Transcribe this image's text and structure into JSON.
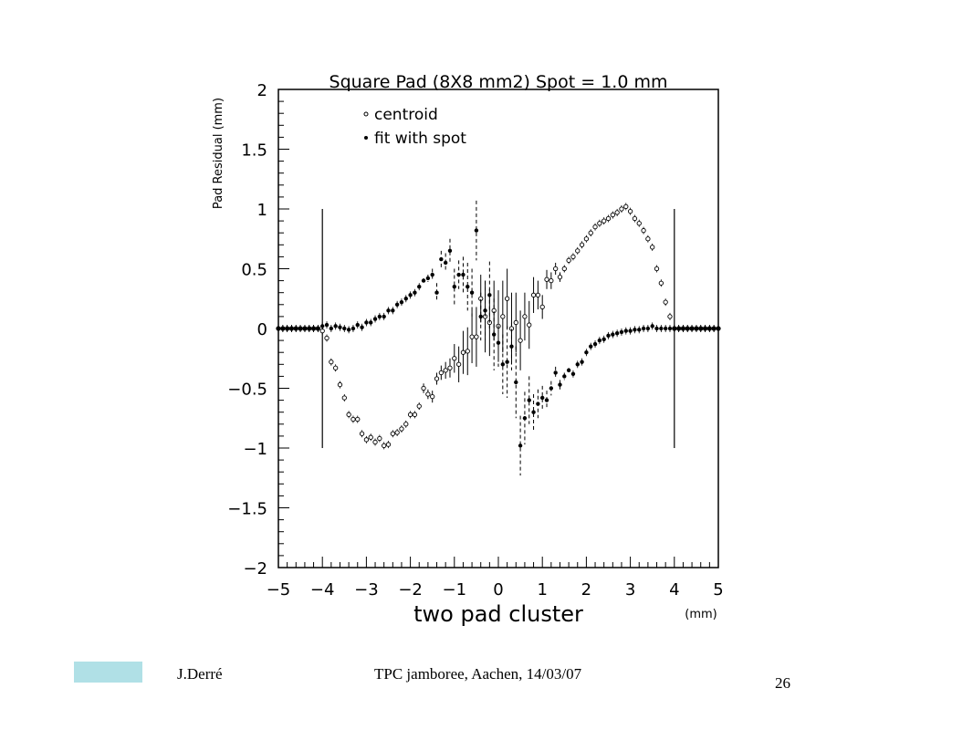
{
  "slide": {
    "author": "J.Derré",
    "event": "TPC jamboree, Aachen, 14/03/07",
    "page_number": "26",
    "footer_bar_color": "#b0e0e6"
  },
  "chart_data": {
    "type": "scatter",
    "title": "Square Pad (8X8 mm2) Spot = 1.0 mm",
    "xlabel": "two pad cluster",
    "xunit": "(mm)",
    "ylabel": "Pad Residual (mm)",
    "xlim": [
      -5,
      5
    ],
    "ylim": [
      -2,
      2
    ],
    "xticks": [
      -5,
      -4,
      -3,
      -2,
      -1,
      0,
      1,
      2,
      3,
      4,
      5
    ],
    "xtick_labels": [
      "−5",
      "−4",
      "−3",
      "−2",
      "−1",
      "0",
      "1",
      "2",
      "3",
      "4",
      "5"
    ],
    "yticks": [
      -2,
      -1.5,
      -1,
      -0.5,
      0,
      0.5,
      1,
      1.5,
      2
    ],
    "ytick_labels": [
      "−2",
      "−1.5",
      "−1",
      "−0.5",
      "0",
      "0.5",
      "1",
      "1.5",
      "2"
    ],
    "grid": false,
    "legend": "top-left",
    "pad_boundaries": {
      "x": [
        -4,
        4
      ],
      "y_range": [
        -1,
        1
      ]
    },
    "series": [
      {
        "name": "centroid",
        "marker": "open",
        "x": [
          -5.0,
          -4.9,
          -4.8,
          -4.7,
          -4.6,
          -4.5,
          -4.4,
          -4.3,
          -4.2,
          -4.1,
          -4.0,
          -3.9,
          -3.8,
          -3.7,
          -3.6,
          -3.5,
          -3.4,
          -3.3,
          -3.2,
          -3.1,
          -3.0,
          -2.9,
          -2.8,
          -2.7,
          -2.6,
          -2.5,
          -2.4,
          -2.3,
          -2.2,
          -2.1,
          -2.0,
          -1.9,
          -1.8,
          -1.7,
          -1.6,
          -1.5,
          -1.4,
          -1.3,
          -1.2,
          -1.1,
          -1.0,
          -0.9,
          -0.8,
          -0.7,
          -0.6,
          -0.5,
          -0.4,
          -0.3,
          -0.2,
          -0.1,
          0.0,
          0.1,
          0.2,
          0.3,
          0.4,
          0.5,
          0.6,
          0.7,
          0.8,
          0.9,
          1.0,
          1.1,
          1.2,
          1.3,
          1.4,
          1.5,
          1.6,
          1.7,
          1.8,
          1.9,
          2.0,
          2.1,
          2.2,
          2.3,
          2.4,
          2.5,
          2.6,
          2.7,
          2.8,
          2.9,
          3.0,
          3.1,
          3.2,
          3.3,
          3.4,
          3.5,
          3.6,
          3.7,
          3.8,
          3.9,
          4.0,
          4.1,
          4.2,
          4.3,
          4.4,
          4.5,
          4.6,
          4.7,
          4.8,
          4.9,
          5.0
        ],
        "y": [
          0,
          0,
          0,
          0,
          0,
          0,
          0,
          0,
          0,
          0,
          -0.02,
          -0.08,
          -0.28,
          -0.33,
          -0.47,
          -0.58,
          -0.72,
          -0.76,
          -0.76,
          -0.88,
          -0.93,
          -0.91,
          -0.95,
          -0.92,
          -0.98,
          -0.97,
          -0.88,
          -0.87,
          -0.84,
          -0.8,
          -0.72,
          -0.72,
          -0.65,
          -0.5,
          -0.55,
          -0.57,
          -0.42,
          -0.37,
          -0.35,
          -0.33,
          -0.25,
          -0.3,
          -0.2,
          -0.19,
          -0.07,
          -0.07,
          0.25,
          0.1,
          0.05,
          0.15,
          0.02,
          0.1,
          0.25,
          0.0,
          0.05,
          -0.1,
          0.1,
          0.03,
          0.28,
          0.28,
          0.18,
          0.41,
          0.4,
          0.5,
          0.43,
          0.5,
          0.57,
          0.6,
          0.65,
          0.7,
          0.75,
          0.8,
          0.85,
          0.88,
          0.9,
          0.92,
          0.95,
          0.97,
          1.0,
          1.02,
          0.98,
          0.92,
          0.88,
          0.82,
          0.75,
          0.68,
          0.5,
          0.38,
          0.22,
          0.1,
          0.0,
          0,
          0,
          0,
          0,
          0,
          0,
          0,
          0,
          0,
          0
        ],
        "yerr": [
          0,
          0,
          0,
          0,
          0,
          0,
          0,
          0,
          0,
          0,
          0,
          0,
          0,
          0,
          0,
          0,
          0,
          0,
          0,
          0,
          0,
          0,
          0,
          0,
          0,
          0,
          0,
          0,
          0,
          0,
          0,
          0,
          0.03,
          0.04,
          0.04,
          0.05,
          0.05,
          0.06,
          0.07,
          0.08,
          0.12,
          0.15,
          0.18,
          0.2,
          0.22,
          0.25,
          0.2,
          0.3,
          0.28,
          0.25,
          0.3,
          0.3,
          0.25,
          0.3,
          0.25,
          0.25,
          0.2,
          0.2,
          0.15,
          0.12,
          0.1,
          0.08,
          0.07,
          0.05,
          0.04,
          0.03,
          0,
          0,
          0,
          0,
          0,
          0,
          0,
          0,
          0,
          0,
          0,
          0,
          0,
          0,
          0,
          0,
          0,
          0,
          0,
          0,
          0,
          0,
          0,
          0,
          0,
          0,
          0,
          0,
          0,
          0,
          0,
          0,
          0,
          0,
          0
        ]
      },
      {
        "name": "fit with spot",
        "marker": "filled",
        "x": [
          -5.0,
          -4.9,
          -4.8,
          -4.7,
          -4.6,
          -4.5,
          -4.4,
          -4.3,
          -4.2,
          -4.1,
          -4.0,
          -3.9,
          -3.8,
          -3.7,
          -3.6,
          -3.5,
          -3.4,
          -3.3,
          -3.2,
          -3.1,
          -3.0,
          -2.9,
          -2.8,
          -2.7,
          -2.6,
          -2.5,
          -2.4,
          -2.3,
          -2.2,
          -2.1,
          -2.0,
          -1.9,
          -1.8,
          -1.7,
          -1.6,
          -1.5,
          -1.4,
          -1.3,
          -1.2,
          -1.1,
          -1.0,
          -0.9,
          -0.8,
          -0.7,
          -0.6,
          -0.5,
          -0.4,
          -0.3,
          -0.2,
          -0.1,
          0.0,
          0.1,
          0.2,
          0.3,
          0.4,
          0.5,
          0.6,
          0.7,
          0.8,
          0.9,
          1.0,
          1.1,
          1.2,
          1.3,
          1.4,
          1.5,
          1.6,
          1.7,
          1.8,
          1.9,
          2.0,
          2.1,
          2.2,
          2.3,
          2.4,
          2.5,
          2.6,
          2.7,
          2.8,
          2.9,
          3.0,
          3.1,
          3.2,
          3.3,
          3.4,
          3.5,
          3.6,
          3.7,
          3.8,
          3.9,
          4.0,
          4.1,
          4.2,
          4.3,
          4.4,
          4.5,
          4.6,
          4.7,
          4.8,
          4.9,
          5.0
        ],
        "y": [
          0,
          0,
          0,
          0,
          0,
          0,
          0,
          0,
          0,
          0,
          0.02,
          0.03,
          0.0,
          0.02,
          0.01,
          0.0,
          -0.01,
          0.0,
          0.03,
          0.01,
          0.05,
          0.05,
          0.08,
          0.1,
          0.1,
          0.15,
          0.15,
          0.2,
          0.22,
          0.25,
          0.28,
          0.3,
          0.35,
          0.4,
          0.42,
          0.45,
          0.3,
          0.58,
          0.55,
          0.65,
          0.35,
          0.45,
          0.45,
          0.35,
          0.3,
          0.82,
          0.1,
          0.15,
          0.28,
          -0.05,
          -0.12,
          -0.3,
          -0.28,
          -0.15,
          -0.45,
          -0.98,
          -0.75,
          -0.6,
          -0.7,
          -0.63,
          -0.58,
          -0.6,
          -0.5,
          -0.37,
          -0.47,
          -0.4,
          -0.35,
          -0.38,
          -0.3,
          -0.28,
          -0.2,
          -0.15,
          -0.13,
          -0.1,
          -0.09,
          -0.06,
          -0.05,
          -0.04,
          -0.03,
          -0.02,
          -0.02,
          -0.01,
          -0.01,
          0.0,
          0.0,
          0.02,
          0.0,
          0.0,
          0.0,
          0.0,
          0.0,
          0,
          0,
          0,
          0,
          0,
          0,
          0,
          0,
          0,
          0
        ],
        "yerr": [
          0,
          0,
          0,
          0,
          0,
          0,
          0,
          0,
          0,
          0,
          0,
          0,
          0,
          0,
          0,
          0,
          0,
          0,
          0,
          0,
          0,
          0,
          0,
          0,
          0,
          0,
          0,
          0,
          0,
          0,
          0,
          0,
          0,
          0.02,
          0.03,
          0.05,
          0.08,
          0.07,
          0.08,
          0.1,
          0.15,
          0.12,
          0.15,
          0.2,
          0.2,
          0.25,
          0.2,
          0.25,
          0.28,
          0.3,
          0.2,
          0.25,
          0.3,
          0.2,
          0.3,
          0.25,
          0.22,
          0.2,
          0.15,
          0.12,
          0.1,
          0.08,
          0.06,
          0.05,
          0.04,
          0.03,
          0.02,
          0,
          0,
          0,
          0,
          0,
          0,
          0,
          0,
          0,
          0,
          0,
          0,
          0,
          0,
          0,
          0,
          0,
          0,
          0,
          0,
          0,
          0,
          0,
          0,
          0,
          0,
          0,
          0,
          0,
          0,
          0,
          0,
          0,
          0
        ]
      }
    ]
  }
}
